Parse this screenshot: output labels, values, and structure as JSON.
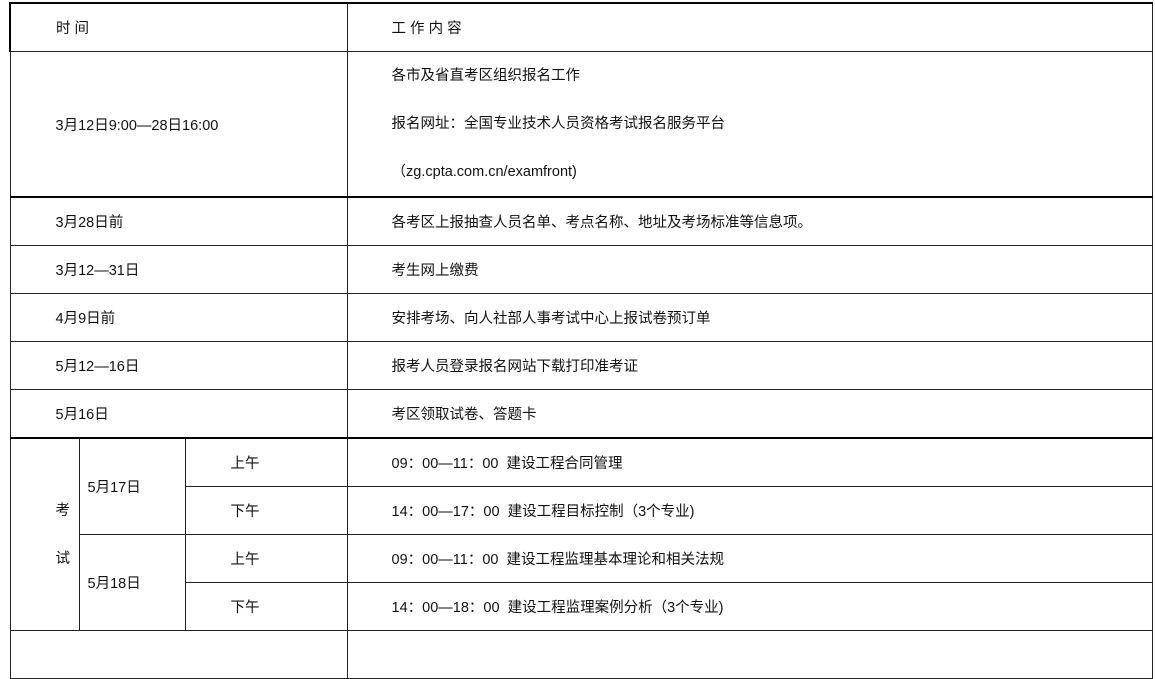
{
  "header": {
    "time": "时 间",
    "content": "工 作 内 容"
  },
  "rows": [
    {
      "time": "3月12日9:00—28日16:00",
      "lines": [
        "各市及省直考区组织报名工作",
        "报名网址：全国专业技术人员资格考试报名服务平台",
        "（zg.cpta.com.cn/examfront)"
      ]
    },
    {
      "time": "3月28日前",
      "content": "各考区上报抽查人员名单、考点名称、地址及考场标准等信息项。"
    },
    {
      "time": "3月12—31日",
      "content": "考生网上缴费"
    },
    {
      "time": "4月9日前",
      "content": "安排考场、向人社部人事考试中心上报试卷预订单"
    },
    {
      "time": "5月12—16日",
      "content": "报考人员登录报名网站下载打印准考证"
    },
    {
      "time": "5月16日",
      "content": "考区领取试卷、答题卡"
    }
  ],
  "exam": {
    "label_top": "考",
    "label_bottom": "试",
    "days": [
      {
        "date": "5月17日",
        "sessions": [
          {
            "half": "上午",
            "content": "09：00—11：00  建设工程合同管理"
          },
          {
            "half": "下午",
            "content": "14：00—17：00  建设工程目标控制（3个专业)"
          }
        ]
      },
      {
        "date": "5月18日",
        "sessions": [
          {
            "half": "上午",
            "content": "09：00—11：00  建设工程监理基本理论和相关法规"
          },
          {
            "half": "下午",
            "content": "14：00—18：00  建设工程监理案例分析（3个专业)"
          }
        ]
      }
    ]
  }
}
